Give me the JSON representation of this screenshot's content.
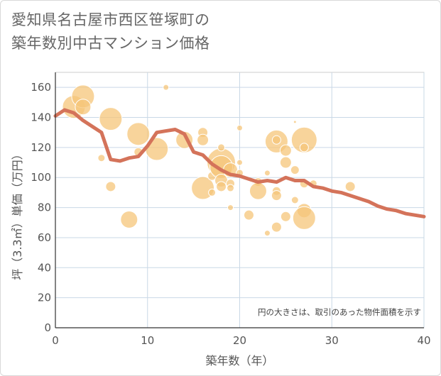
{
  "title_line1": "愛知県名古屋市西区笹塚町の",
  "title_line2": "築年数別中古マンション価格",
  "chart_data": {
    "type": "scatter",
    "title": "愛知県名古屋市西区笹塚町の築年数別中古マンション価格",
    "xlabel": "築年数（年）",
    "ylabel": "坪（3.3㎡）単価（万円）",
    "xlim": [
      0,
      40
    ],
    "ylim": [
      0,
      170
    ],
    "xticks": [
      "0",
      "10",
      "20",
      "30",
      "40"
    ],
    "yticks": [
      "0",
      "20",
      "40",
      "60",
      "80",
      "100",
      "120",
      "140",
      "160"
    ],
    "grid": true,
    "note": "円の大きさは、取引のあった物件面積を示す",
    "bubble_color": "#f5c57a",
    "line_color": "#d4735a",
    "bubbles": [
      {
        "x": 2,
        "y": 147,
        "s": 16
      },
      {
        "x": 3,
        "y": 154,
        "s": 16
      },
      {
        "x": 3,
        "y": 147,
        "s": 11
      },
      {
        "x": 5,
        "y": 113,
        "s": 5
      },
      {
        "x": 6,
        "y": 139,
        "s": 16
      },
      {
        "x": 6,
        "y": 94,
        "s": 7
      },
      {
        "x": 8,
        "y": 72,
        "s": 12
      },
      {
        "x": 9,
        "y": 129,
        "s": 16
      },
      {
        "x": 9,
        "y": 117,
        "s": 6
      },
      {
        "x": 11,
        "y": 119,
        "s": 16
      },
      {
        "x": 12,
        "y": 160,
        "s": 4
      },
      {
        "x": 14,
        "y": 125,
        "s": 12
      },
      {
        "x": 16,
        "y": 130,
        "s": 7
      },
      {
        "x": 16,
        "y": 125,
        "s": 8
      },
      {
        "x": 16,
        "y": 93,
        "s": 16
      },
      {
        "x": 17,
        "y": 90,
        "s": 5
      },
      {
        "x": 17,
        "y": 101,
        "s": 6
      },
      {
        "x": 18,
        "y": 110,
        "s": 20
      },
      {
        "x": 18,
        "y": 107,
        "s": 16
      },
      {
        "x": 18,
        "y": 98,
        "s": 9
      },
      {
        "x": 18,
        "y": 94,
        "s": 7
      },
      {
        "x": 18,
        "y": 120,
        "s": 5
      },
      {
        "x": 19,
        "y": 105,
        "s": 10
      },
      {
        "x": 19,
        "y": 96,
        "s": 6
      },
      {
        "x": 19,
        "y": 93,
        "s": 5
      },
      {
        "x": 19,
        "y": 80,
        "s": 4
      },
      {
        "x": 20,
        "y": 133,
        "s": 4
      },
      {
        "x": 20,
        "y": 110,
        "s": 4
      },
      {
        "x": 20,
        "y": 103,
        "s": 5
      },
      {
        "x": 21,
        "y": 75,
        "s": 7
      },
      {
        "x": 22,
        "y": 97,
        "s": 6
      },
      {
        "x": 22,
        "y": 91,
        "s": 12
      },
      {
        "x": 23,
        "y": 103,
        "s": 4
      },
      {
        "x": 23,
        "y": 63,
        "s": 4
      },
      {
        "x": 24,
        "y": 124,
        "s": 16
      },
      {
        "x": 24,
        "y": 125,
        "s": 6
      },
      {
        "x": 24,
        "y": 91,
        "s": 6
      },
      {
        "x": 24,
        "y": 88,
        "s": 7
      },
      {
        "x": 24,
        "y": 67,
        "s": 7
      },
      {
        "x": 25,
        "y": 118,
        "s": 8
      },
      {
        "x": 25,
        "y": 110,
        "s": 8
      },
      {
        "x": 25,
        "y": 74,
        "s": 7
      },
      {
        "x": 26,
        "y": 105,
        "s": 6
      },
      {
        "x": 26,
        "y": 85,
        "s": 5
      },
      {
        "x": 26,
        "y": 137,
        "s": 2
      },
      {
        "x": 27,
        "y": 125,
        "s": 18
      },
      {
        "x": 27,
        "y": 120,
        "s": 6
      },
      {
        "x": 27,
        "y": 96,
        "s": 6
      },
      {
        "x": 27,
        "y": 78,
        "s": 10
      },
      {
        "x": 27,
        "y": 73,
        "s": 16
      },
      {
        "x": 28,
        "y": 96,
        "s": 5
      },
      {
        "x": 32,
        "y": 94,
        "s": 7
      }
    ],
    "trend": {
      "x": [
        0,
        1,
        2,
        3,
        4,
        5,
        6,
        7,
        8,
        9,
        10,
        11,
        12,
        13,
        14,
        15,
        16,
        17,
        18,
        19,
        20,
        21,
        22,
        23,
        24,
        25,
        26,
        27,
        28,
        29,
        30,
        31,
        32,
        33,
        34,
        35,
        36,
        37,
        38,
        39,
        40
      ],
      "y": [
        141,
        145,
        143,
        138,
        134,
        130,
        112,
        111,
        113,
        114,
        121,
        130,
        131,
        132,
        129,
        117,
        115,
        109,
        105,
        102,
        101,
        99,
        97,
        98,
        97,
        100,
        98,
        98,
        94,
        93,
        91,
        90,
        88,
        86,
        84,
        81,
        79,
        78,
        76,
        75,
        74
      ]
    }
  }
}
